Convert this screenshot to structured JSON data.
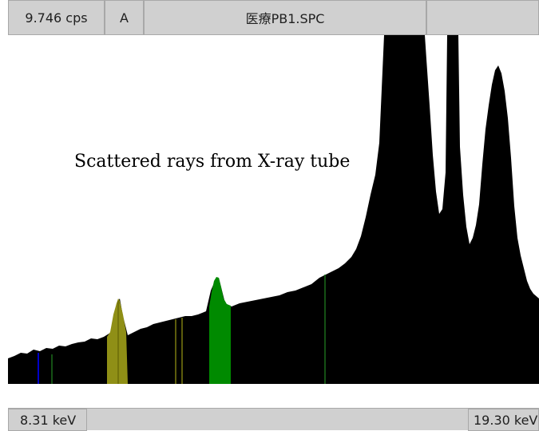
{
  "header": {
    "count_rate": "9.746 cps",
    "channel": "A",
    "filename": "医療PB1.SPC"
  },
  "footer": {
    "energy_min": "8.31 keV",
    "energy_max": "19.30 keV"
  },
  "annotation": {
    "text": "Scattered rays from X-ray tube"
  },
  "colors": {
    "spectrum": "#000000",
    "region_olive": "#8f8f16",
    "region_green": "#008a00",
    "marker_blue": "#0000c8",
    "marker_green": "#1a6a1a",
    "marker_olive": "#7a7a10",
    "annotation_arrow": "#ffffff"
  }
}
